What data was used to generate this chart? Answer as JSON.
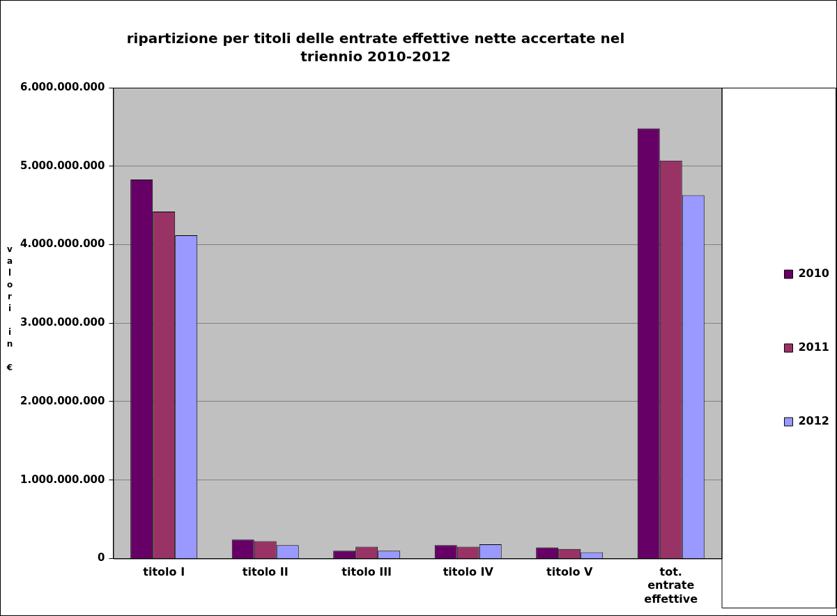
{
  "chart_data": {
    "type": "bar",
    "title": "ripartizione per titoli delle entrate effettive nette accertate nel triennio 2010-2012",
    "ylabel": "valori in €",
    "categories": [
      "titolo I",
      "titolo II",
      "titolo III",
      "titolo IV",
      "titolo V",
      "tot. entrate effettive"
    ],
    "series": [
      {
        "name": "2010",
        "color": "#660066",
        "values": [
          4830000000,
          240000000,
          100000000,
          170000000,
          140000000,
          5480000000
        ]
      },
      {
        "name": "2011",
        "color": "#993366",
        "values": [
          4420000000,
          220000000,
          150000000,
          150000000,
          120000000,
          5070000000
        ]
      },
      {
        "name": "2012",
        "color": "#9999ff",
        "values": [
          4120000000,
          170000000,
          100000000,
          180000000,
          80000000,
          4630000000
        ]
      }
    ],
    "ylim": [
      0,
      6000000000
    ],
    "yticks": [
      {
        "value": 0,
        "label": "0"
      },
      {
        "value": 1000000000,
        "label": "1.000.000.000"
      },
      {
        "value": 2000000000,
        "label": "2.000.000.000"
      },
      {
        "value": 3000000000,
        "label": "3.000.000.000"
      },
      {
        "value": 4000000000,
        "label": "4.000.000.000"
      },
      {
        "value": 5000000000,
        "label": "5.000.000.000"
      },
      {
        "value": 6000000000,
        "label": "6.000.000.000"
      }
    ],
    "grid": "y",
    "legend": "right"
  }
}
